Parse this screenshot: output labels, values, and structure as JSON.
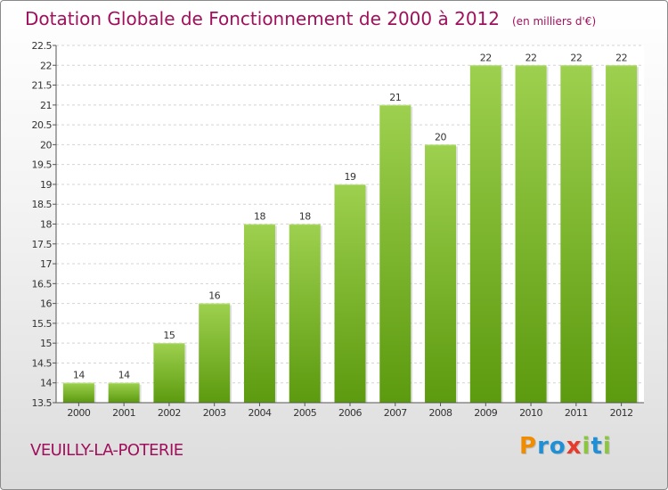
{
  "header": {
    "title": "Dotation Globale de Fonctionnement de 2000 à 2012",
    "subtitle": "(en milliers d'€)"
  },
  "footer": {
    "commune": "VEUILLY-LA-POTERIE",
    "brand": "Proxiti"
  },
  "colors": {
    "title": "#a0105c",
    "bar_top": "#9dd04e",
    "bar_bottom": "#5c9a0f",
    "brand_letters": [
      "#f08c00",
      "#1f8fd6",
      "#1f8fd6",
      "#e83a2a",
      "#8cc63f",
      "#1f8fd6",
      "#8cc63f"
    ]
  },
  "chart_data": {
    "type": "bar",
    "categories": [
      "2000",
      "2001",
      "2002",
      "2003",
      "2004",
      "2005",
      "2006",
      "2007",
      "2008",
      "2009",
      "2010",
      "2011",
      "2012"
    ],
    "values": [
      14,
      14,
      15,
      16,
      18,
      18,
      19,
      21,
      20,
      22,
      22,
      22,
      22
    ],
    "data_labels": [
      "14",
      "14",
      "15",
      "16",
      "18",
      "18",
      "19",
      "21",
      "20",
      "22",
      "22",
      "22",
      "22"
    ],
    "yticks": [
      "13.5",
      "14",
      "14.5",
      "15",
      "15.5",
      "16",
      "16.5",
      "17",
      "17.5",
      "18",
      "18.5",
      "19",
      "19.5",
      "20",
      "20.5",
      "21",
      "21.5",
      "22",
      "22.5"
    ],
    "ylim": [
      13.5,
      22.5
    ],
    "grid": true,
    "legend": "none"
  }
}
